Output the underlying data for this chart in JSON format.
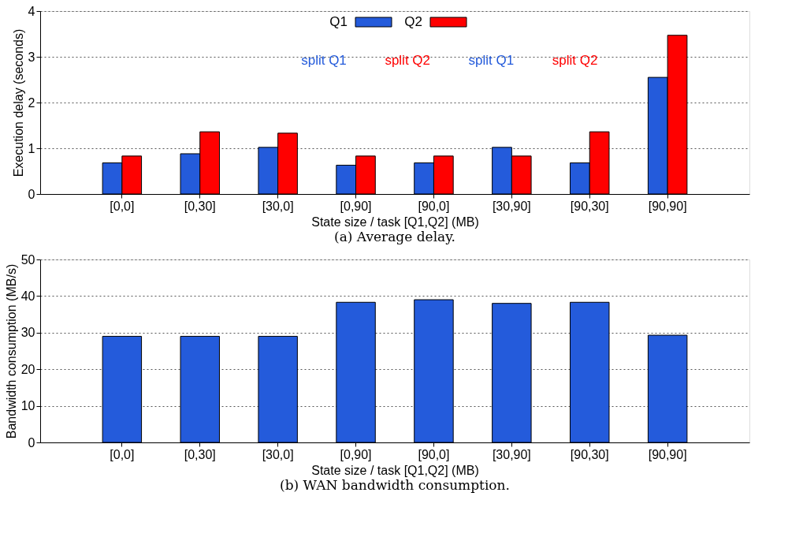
{
  "chart_data": [
    {
      "type": "bar",
      "title": "(a) Average delay.",
      "xlabel": "State size / task [Q1,Q2] (MB)",
      "ylabel": "Execution delay (seconds)",
      "categories": [
        "[0,0]",
        "[0,30]",
        "[30,0]",
        "[0,90]",
        "[90,0]",
        "[30,90]",
        "[90,30]",
        "[90,90]"
      ],
      "series": [
        {
          "name": "Q1",
          "color": "#245bdb",
          "values": [
            0.68,
            0.88,
            1.02,
            0.63,
            0.68,
            1.02,
            0.68,
            2.55
          ]
        },
        {
          "name": "Q2",
          "color": "#ff0000",
          "values": [
            0.83,
            1.36,
            1.33,
            0.83,
            0.83,
            0.83,
            1.36,
            3.47
          ]
        }
      ],
      "annotations": [
        "split Q1",
        "split Q2",
        "split Q1",
        "split Q2"
      ],
      "ylim": [
        0,
        4
      ],
      "yticks": [
        0,
        1,
        2,
        3,
        4
      ],
      "grid": "y",
      "legend": "top"
    },
    {
      "type": "bar",
      "title": "(b) WAN bandwidth consumption.",
      "xlabel": "State size / task [Q1,Q2] (MB)",
      "ylabel": "Bandwidth consumption (MB/s)",
      "categories": [
        "[0,0]",
        "[0,30]",
        "[30,0]",
        "[0,90]",
        "[90,0]",
        "[30,90]",
        "[90,30]",
        "[90,90]"
      ],
      "values": [
        29,
        29,
        29,
        38.3,
        39,
        38,
        38.3,
        29.3
      ],
      "color": "#245bdb",
      "ylim": [
        0,
        50
      ],
      "yticks": [
        0,
        10,
        20,
        30,
        40,
        50
      ],
      "grid": "y"
    }
  ]
}
